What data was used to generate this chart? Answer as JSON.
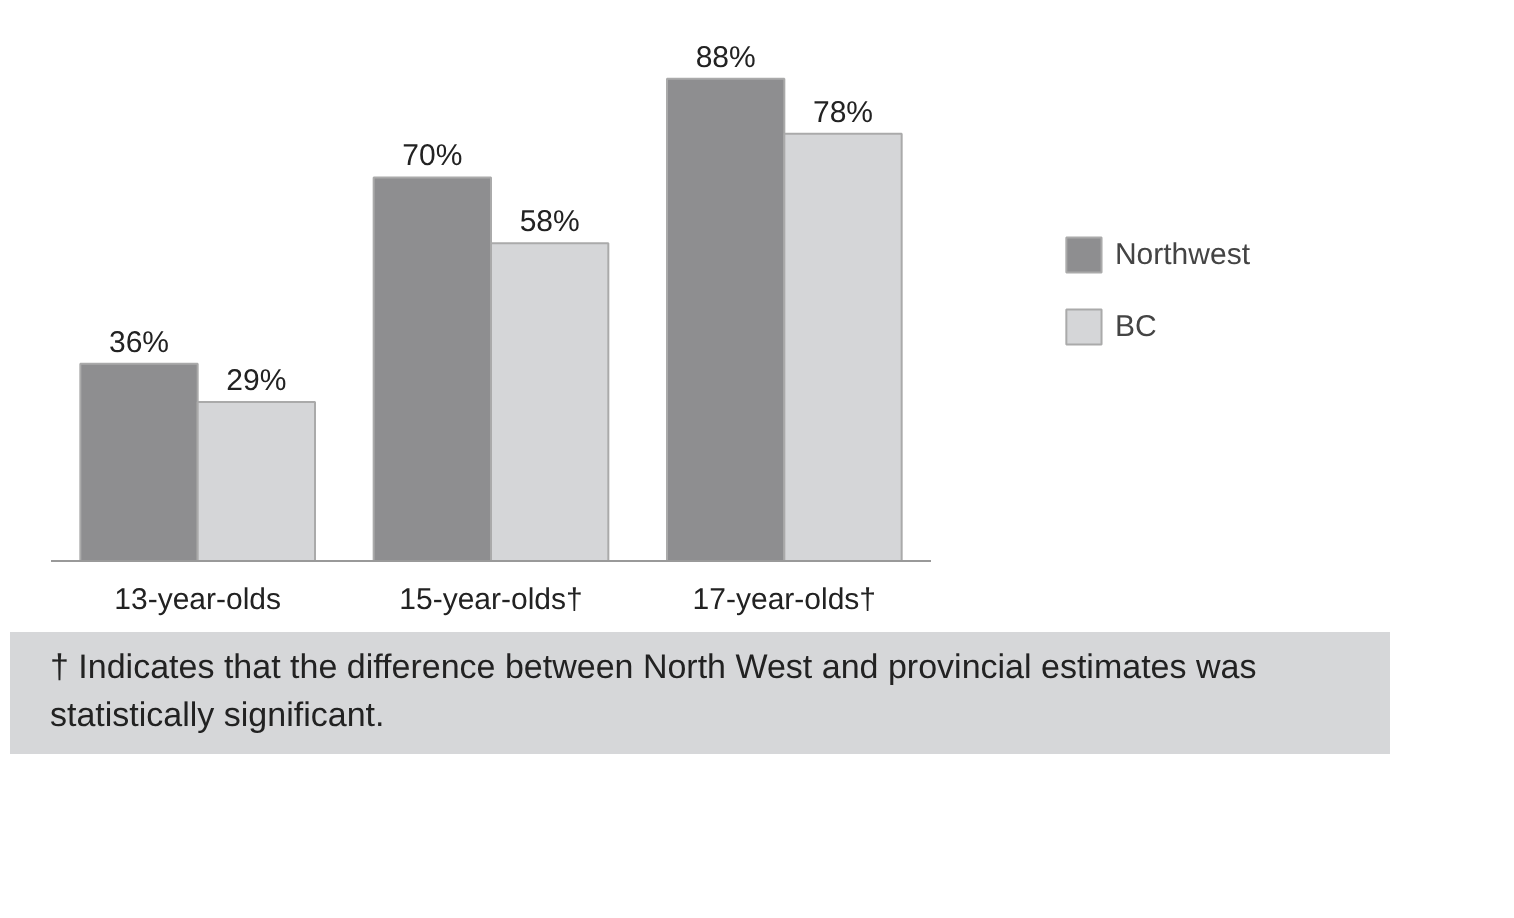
{
  "chart_data": {
    "type": "bar",
    "categories": [
      "13-year-olds",
      "15-year-olds†",
      "17-year-olds†"
    ],
    "series": [
      {
        "name": "Northwest",
        "color": "#8e8e90",
        "values": [
          36,
          70,
          88
        ],
        "value_labels": [
          "36%",
          "70%",
          "88%"
        ]
      },
      {
        "name": "BC",
        "color": "#d5d6d8",
        "values": [
          29,
          58,
          78
        ],
        "value_labels": [
          "29%",
          "58%",
          "78%"
        ]
      }
    ],
    "legend": "right",
    "annotations": [
      "† Indicates that the difference between North West and provincial estimates was statistically significant."
    ]
  }
}
